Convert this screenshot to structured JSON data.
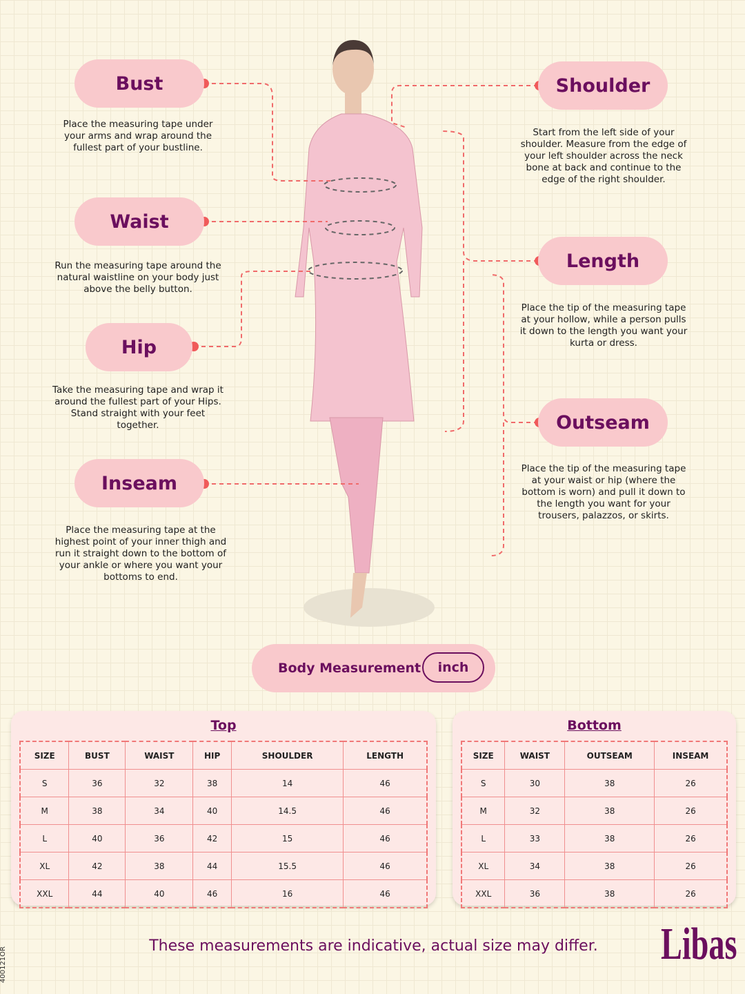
{
  "measurements": [
    {
      "label": "Bust",
      "description": "Place the measuring tape under your arms and wrap around the fullest part of your bustline."
    },
    {
      "label": "Waist",
      "description": "Run the measuring tape around the natural waistline on your body just above the belly button."
    },
    {
      "label": "Hip",
      "description": "Take the measuring tape and wrap it around the fullest part of your Hips. Stand straight with your feet together."
    },
    {
      "label": "Inseam",
      "description": "Place the measuring tape at the highest point of your inner thigh and run it straight down to the bottom of your ankle or where you want your bottoms to end."
    },
    {
      "label": "Shoulder",
      "description": "Start from the left side of your shoulder. Measure from the edge of your left shoulder across the neck bone at back and continue to the edge of the right shoulder."
    },
    {
      "label": "Length",
      "description": "Place the tip of the measuring tape at your hollow, while a person pulls it down to the length you want your kurta or dress."
    },
    {
      "label": "Outseam",
      "description": "Place the tip of the measuring tape at your waist or hip (where the bottom is worn) and pull it down to the length you want for your trousers, palazzos, or skirts."
    }
  ],
  "unit_toggle": {
    "label": "Body Measurement",
    "unit": "inch"
  },
  "tables": [
    {
      "title": "Top",
      "header": [
        "SIZE",
        "BUST",
        "WAIST",
        "HIP",
        "SHOULDER",
        "LENGTH"
      ],
      "rows": [
        [
          "S",
          36,
          32,
          38,
          14,
          46
        ],
        [
          "M",
          38,
          34,
          40,
          14.5,
          46
        ],
        [
          "L",
          40,
          36,
          42,
          15,
          46
        ],
        [
          "XL",
          42,
          38,
          44,
          15.5,
          46
        ],
        [
          "XXL",
          44,
          40,
          46,
          16,
          46
        ]
      ]
    },
    {
      "title": "Bottom",
      "header": [
        "SIZE",
        "WAIST",
        "OUTSEAM",
        "INSEAM"
      ],
      "rows": [
        [
          "S",
          30,
          38,
          26
        ],
        [
          "M",
          32,
          38,
          26
        ],
        [
          "L",
          33,
          38,
          26
        ],
        [
          "XL",
          34,
          38,
          26
        ],
        [
          "XXL",
          36,
          38,
          26
        ]
      ]
    }
  ],
  "footer": "These measurements are indicative, actual size may differ.",
  "brand": "Libas",
  "code": "400121OR"
}
